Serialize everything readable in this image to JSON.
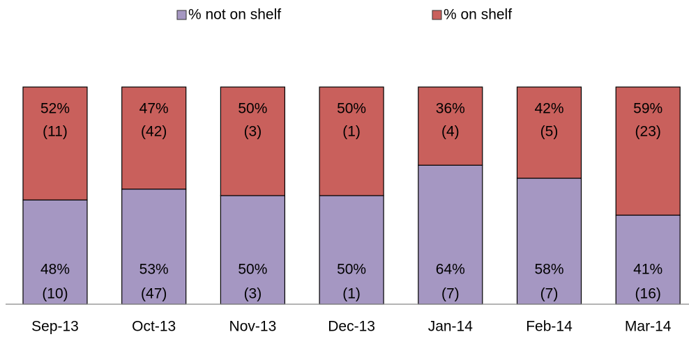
{
  "chart_data": {
    "type": "stacked_bar",
    "categories": [
      "Sep-13",
      "Oct-13",
      "Nov-13",
      "Dec-13",
      "Jan-14",
      "Feb-14",
      "Mar-14"
    ],
    "series": [
      {
        "name": "% not on shelf",
        "color": "#a597c2",
        "values": [
          48,
          53,
          50,
          50,
          64,
          58,
          41
        ],
        "value_labels": [
          "48%",
          "53%",
          "50%",
          "50%",
          "64%",
          "58%",
          "41%"
        ],
        "count_labels": [
          "(10)",
          "(47)",
          "(3)",
          "(1)",
          "(7)",
          "(7)",
          "(16)"
        ]
      },
      {
        "name": "% on shelf",
        "color": "#c9605c",
        "values": [
          52,
          47,
          50,
          50,
          36,
          42,
          59
        ],
        "value_labels": [
          "52%",
          "47%",
          "50%",
          "50%",
          "36%",
          "42%",
          "59%"
        ],
        "count_labels": [
          "(11)",
          "(42)",
          "(3)",
          "(1)",
          "(4)",
          "(5)",
          "(23)"
        ]
      }
    ],
    "legend": "top"
  }
}
